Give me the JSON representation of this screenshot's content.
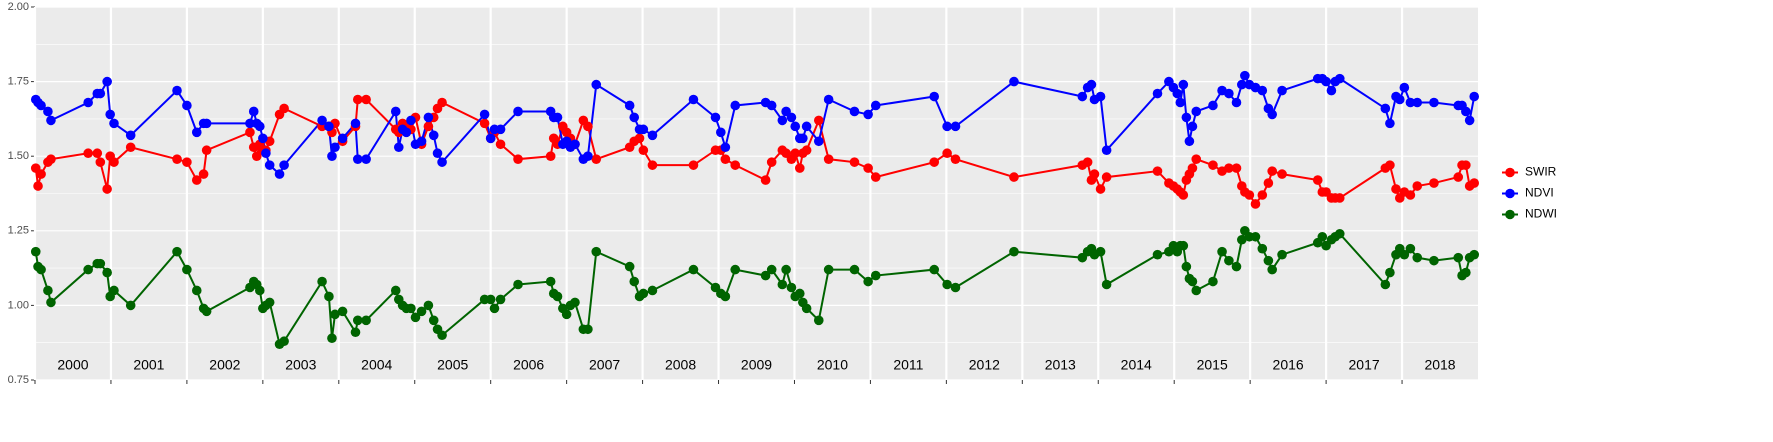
{
  "chart_data": {
    "type": "line",
    "x": [
      2000.01,
      2000.04,
      2000.08,
      2000.17,
      2000.21,
      2000.7,
      2000.82,
      2000.86,
      2000.95,
      2000.99,
      2001.04,
      2001.26,
      2001.87,
      2002.0,
      2002.13,
      2002.22,
      2002.26,
      2002.83,
      2002.88,
      2002.92,
      2002.96,
      2003.0,
      2003.04,
      2003.09,
      2003.22,
      2003.28,
      2003.78,
      2003.87,
      2003.91,
      2003.95,
      2004.05,
      2004.22,
      2004.25,
      2004.36,
      2004.75,
      2004.79,
      2004.84,
      2004.89,
      2004.95,
      2005.01,
      2005.09,
      2005.18,
      2005.25,
      2005.3,
      2005.36,
      2005.92,
      2006.0,
      2006.05,
      2006.13,
      2006.36,
      2006.79,
      2006.83,
      2006.88,
      2006.95,
      2007.0,
      2007.05,
      2007.11,
      2007.22,
      2007.28,
      2007.39,
      2007.83,
      2007.89,
      2007.96,
      2008.01,
      2008.13,
      2008.67,
      2008.96,
      2009.03,
      2009.09,
      2009.22,
      2009.62,
      2009.7,
      2009.84,
      2009.89,
      2009.96,
      2010.01,
      2010.07,
      2010.11,
      2010.16,
      2010.32,
      2010.45,
      2010.79,
      2010.97,
      2011.07,
      2011.84,
      2012.01,
      2012.12,
      2012.89,
      2013.79,
      2013.86,
      2013.91,
      2013.95,
      2014.03,
      2014.11,
      2014.78,
      2014.93,
      2014.99,
      2015.04,
      2015.08,
      2015.12,
      2015.16,
      2015.2,
      2015.24,
      2015.29,
      2015.51,
      2015.63,
      2015.72,
      2015.82,
      2015.89,
      2015.93,
      2015.99,
      2016.07,
      2016.16,
      2016.24,
      2016.29,
      2016.42,
      2016.89,
      2016.95,
      2017.0,
      2017.07,
      2017.12,
      2017.18,
      2017.78,
      2017.84,
      2017.92,
      2017.97,
      2018.03,
      2018.11,
      2018.2,
      2018.42,
      2018.74,
      2018.79,
      2018.84,
      2018.89,
      2018.95
    ],
    "series": [
      {
        "name": "SWIR",
        "color": "#ff0000",
        "values": [
          1.46,
          1.4,
          1.44,
          1.48,
          1.49,
          1.51,
          1.51,
          1.48,
          1.39,
          1.5,
          1.48,
          1.53,
          1.49,
          1.48,
          1.42,
          1.44,
          1.52,
          1.58,
          1.53,
          1.5,
          1.54,
          1.52,
          1.52,
          1.55,
          1.64,
          1.66,
          1.6,
          1.6,
          1.58,
          1.61,
          1.55,
          1.6,
          1.69,
          1.69,
          1.59,
          1.58,
          1.61,
          1.6,
          1.59,
          1.63,
          1.54,
          1.6,
          1.63,
          1.66,
          1.68,
          1.61,
          1.56,
          1.58,
          1.54,
          1.49,
          1.5,
          1.56,
          1.54,
          1.6,
          1.58,
          1.56,
          1.54,
          1.62,
          1.6,
          1.49,
          1.53,
          1.55,
          1.56,
          1.52,
          1.47,
          1.47,
          1.52,
          1.52,
          1.49,
          1.47,
          1.42,
          1.48,
          1.52,
          1.51,
          1.49,
          1.51,
          1.46,
          1.51,
          1.52,
          1.62,
          1.49,
          1.48,
          1.46,
          1.43,
          1.48,
          1.51,
          1.49,
          1.43,
          1.47,
          1.48,
          1.42,
          1.44,
          1.39,
          1.43,
          1.45,
          1.41,
          1.4,
          1.39,
          1.38,
          1.37,
          1.42,
          1.44,
          1.46,
          1.49,
          1.47,
          1.45,
          1.46,
          1.46,
          1.4,
          1.38,
          1.37,
          1.34,
          1.37,
          1.41,
          1.45,
          1.44,
          1.42,
          1.38,
          1.38,
          1.36,
          1.36,
          1.36,
          1.46,
          1.47,
          1.39,
          1.36,
          1.38,
          1.37,
          1.4,
          1.41,
          1.43,
          1.47,
          1.47,
          1.4,
          1.41
        ]
      },
      {
        "name": "NDVI",
        "color": "#0000ff",
        "values": [
          1.69,
          1.68,
          1.67,
          1.65,
          1.62,
          1.68,
          1.71,
          1.71,
          1.75,
          1.64,
          1.61,
          1.57,
          1.72,
          1.67,
          1.58,
          1.61,
          1.61,
          1.61,
          1.65,
          1.61,
          1.6,
          1.56,
          1.51,
          1.47,
          1.44,
          1.47,
          1.62,
          1.6,
          1.5,
          1.53,
          1.56,
          1.61,
          1.49,
          1.49,
          1.65,
          1.53,
          1.59,
          1.58,
          1.62,
          1.54,
          1.55,
          1.63,
          1.57,
          1.51,
          1.48,
          1.64,
          1.56,
          1.59,
          1.59,
          1.65,
          1.65,
          1.63,
          1.63,
          1.54,
          1.55,
          1.53,
          1.54,
          1.49,
          1.5,
          1.74,
          1.67,
          1.63,
          1.59,
          1.59,
          1.57,
          1.69,
          1.63,
          1.58,
          1.53,
          1.67,
          1.68,
          1.67,
          1.62,
          1.65,
          1.63,
          1.6,
          1.56,
          1.56,
          1.6,
          1.55,
          1.69,
          1.65,
          1.64,
          1.67,
          1.7,
          1.6,
          1.6,
          1.75,
          1.7,
          1.73,
          1.74,
          1.69,
          1.7,
          1.52,
          1.71,
          1.75,
          1.73,
          1.71,
          1.68,
          1.74,
          1.63,
          1.55,
          1.6,
          1.65,
          1.67,
          1.72,
          1.71,
          1.68,
          1.74,
          1.77,
          1.74,
          1.73,
          1.72,
          1.66,
          1.64,
          1.72,
          1.76,
          1.76,
          1.75,
          1.72,
          1.75,
          1.76,
          1.66,
          1.61,
          1.7,
          1.69,
          1.73,
          1.68,
          1.68,
          1.68,
          1.67,
          1.67,
          1.65,
          1.62,
          1.7
        ]
      },
      {
        "name": "NDWI",
        "color": "#006400",
        "values": [
          1.18,
          1.13,
          1.12,
          1.05,
          1.01,
          1.12,
          1.14,
          1.14,
          1.11,
          1.03,
          1.05,
          1.0,
          1.18,
          1.12,
          1.05,
          0.99,
          0.98,
          1.06,
          1.08,
          1.07,
          1.05,
          0.99,
          1.0,
          1.01,
          0.87,
          0.88,
          1.08,
          1.03,
          0.89,
          0.97,
          0.98,
          0.91,
          0.95,
          0.95,
          1.05,
          1.02,
          1.0,
          0.99,
          0.99,
          0.96,
          0.98,
          1.0,
          0.95,
          0.92,
          0.9,
          1.02,
          1.02,
          0.99,
          1.02,
          1.07,
          1.08,
          1.04,
          1.03,
          0.99,
          0.97,
          1.0,
          1.01,
          0.92,
          0.92,
          1.18,
          1.13,
          1.08,
          1.03,
          1.04,
          1.05,
          1.12,
          1.06,
          1.04,
          1.03,
          1.12,
          1.1,
          1.12,
          1.07,
          1.12,
          1.06,
          1.03,
          1.04,
          1.01,
          0.99,
          0.95,
          1.12,
          1.12,
          1.08,
          1.1,
          1.12,
          1.07,
          1.06,
          1.18,
          1.16,
          1.18,
          1.19,
          1.17,
          1.18,
          1.07,
          1.17,
          1.18,
          1.2,
          1.18,
          1.2,
          1.2,
          1.13,
          1.09,
          1.08,
          1.05,
          1.08,
          1.18,
          1.15,
          1.13,
          1.22,
          1.25,
          1.23,
          1.23,
          1.19,
          1.15,
          1.12,
          1.17,
          1.21,
          1.23,
          1.2,
          1.22,
          1.23,
          1.24,
          1.07,
          1.11,
          1.17,
          1.19,
          1.17,
          1.19,
          1.16,
          1.15,
          1.16,
          1.1,
          1.11,
          1.16,
          1.17
        ]
      }
    ],
    "xlim": [
      2000,
      2019
    ],
    "xticks": [
      {
        "value": 2000,
        "label": "2000"
      },
      {
        "value": 2001,
        "label": "2001"
      },
      {
        "value": 2002,
        "label": "2002"
      },
      {
        "value": 2003,
        "label": "2003"
      },
      {
        "value": 2004,
        "label": "2004"
      },
      {
        "value": 2005,
        "label": "2005"
      },
      {
        "value": 2006,
        "label": "2006"
      },
      {
        "value": 2007,
        "label": "2007"
      },
      {
        "value": 2008,
        "label": "2008"
      },
      {
        "value": 2009,
        "label": "2009"
      },
      {
        "value": 2010,
        "label": "2010"
      },
      {
        "value": 2011,
        "label": "2011"
      },
      {
        "value": 2012,
        "label": "2012"
      },
      {
        "value": 2013,
        "label": "2013"
      },
      {
        "value": 2014,
        "label": "2014"
      },
      {
        "value": 2015,
        "label": "2015"
      },
      {
        "value": 2016,
        "label": "2016"
      },
      {
        "value": 2017,
        "label": "2017"
      },
      {
        "value": 2018,
        "label": "2018"
      }
    ],
    "ylim": [
      0.75,
      2.0
    ],
    "yticks": [
      {
        "value": 0.75,
        "label": "0.75"
      },
      {
        "value": 1.0,
        "label": "1.00"
      },
      {
        "value": 1.25,
        "label": "1.25"
      },
      {
        "value": 1.5,
        "label": "1.50"
      },
      {
        "value": 1.75,
        "label": "1.75"
      },
      {
        "value": 2.0,
        "label": "2.00"
      }
    ],
    "grid": true,
    "legend": "right"
  }
}
